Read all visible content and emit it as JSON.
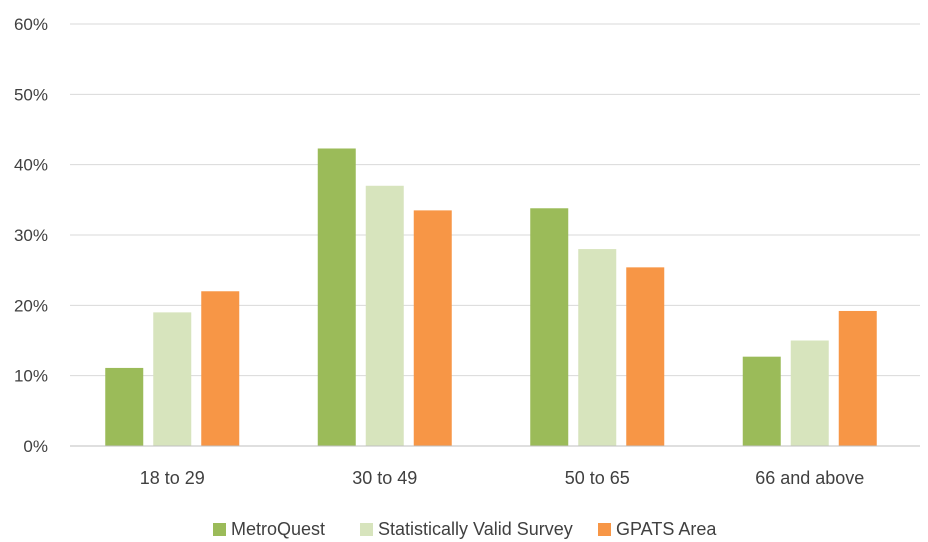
{
  "chart_data": {
    "type": "bar",
    "title": "",
    "xlabel": "",
    "ylabel": "",
    "categories": [
      "18 to 29",
      "30 to 49",
      "50 to 65",
      "66 and above"
    ],
    "series": [
      {
        "name": "MetroQuest",
        "color": "#9bbb59",
        "values": [
          0.111,
          0.423,
          0.338,
          0.127
        ]
      },
      {
        "name": "Statistically Valid Survey",
        "color": "#d7e4bd",
        "values": [
          0.19,
          0.37,
          0.28,
          0.15
        ]
      },
      {
        "name": "GPATS Area",
        "color": "#f79646",
        "values": [
          0.22,
          0.335,
          0.254,
          0.192
        ]
      }
    ],
    "ylim": [
      0,
      0.6
    ],
    "yticks": [
      0,
      0.1,
      0.2,
      0.3,
      0.4,
      0.5,
      0.6
    ],
    "ytick_labels": [
      "0%",
      "10%",
      "20%",
      "30%",
      "40%",
      "50%",
      "60%"
    ],
    "grid": true,
    "legend_position": "bottom",
    "colors": {
      "grid": "#d9d9d9",
      "axis": "#bfbfbf",
      "text": "#404040"
    }
  }
}
